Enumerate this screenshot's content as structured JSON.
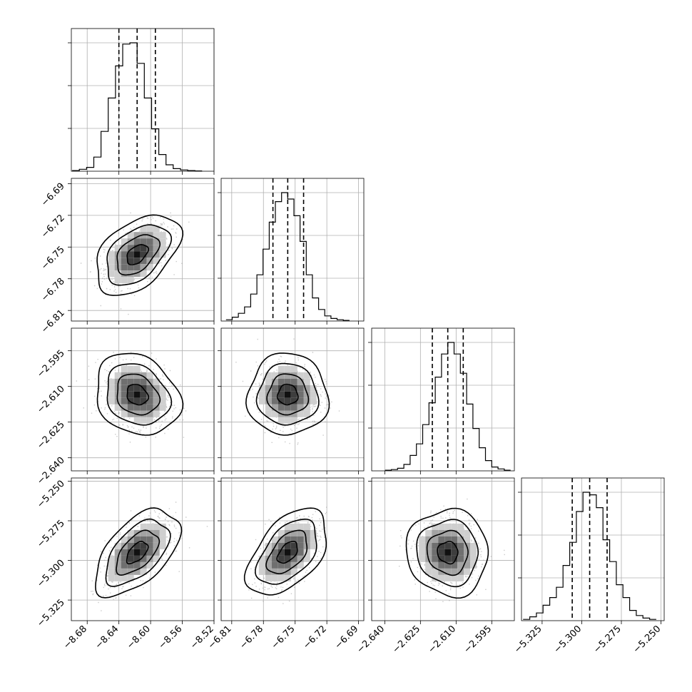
{
  "chart_data": {
    "type": "corner",
    "grid": true,
    "params": [
      {
        "range": [
          -8.7,
          -8.52
        ],
        "ticks": [
          -8.68,
          -8.64,
          -8.6,
          -8.56,
          -8.52
        ],
        "tick_labels": [
          "−8.68",
          "−8.64",
          "−8.60",
          "−8.56",
          "−8.52"
        ],
        "mean": -8.617,
        "sd": 0.0205,
        "quantiles": [
          -8.64,
          -8.617,
          -8.594
        ],
        "hist": [
          0.5,
          1.5,
          3,
          11,
          31,
          57,
          82,
          99,
          100,
          84,
          57,
          33,
          13,
          5,
          2,
          1,
          0.5,
          0.2
        ]
      },
      {
        "range": [
          -6.82,
          -6.685
        ],
        "ticks": [
          -6.81,
          -6.78,
          -6.75,
          -6.72,
          -6.69
        ],
        "tick_labels": [
          "−6.81",
          "−6.78",
          "−6.75",
          "−6.72",
          "−6.69"
        ],
        "mean": -6.757,
        "sd": 0.0146,
        "quantiles": [
          -6.771,
          -6.757,
          -6.742
        ],
        "hist": [
          1,
          3,
          6,
          11,
          21,
          36,
          56,
          77,
          93,
          100,
          95,
          82,
          62,
          36,
          18,
          9,
          4,
          2,
          1,
          0.5
        ]
      },
      {
        "range": [
          -2.6455,
          -2.5855
        ],
        "ticks": [
          -2.64,
          -2.625,
          -2.61,
          -2.595
        ],
        "tick_labels": [
          "−2.640",
          "−2.625",
          "−2.610",
          "−2.595"
        ],
        "mean": -2.6135,
        "sd": 0.0066,
        "quantiles": [
          -2.62,
          -2.6135,
          -2.607
        ],
        "hist": [
          0.5,
          1,
          2,
          5,
          12,
          21,
          36,
          53,
          73,
          91,
          100,
          91,
          76,
          52,
          33,
          18,
          8,
          3,
          1.5,
          0.5
        ]
      },
      {
        "range": [
          -5.338,
          -5.248
        ],
        "ticks": [
          -5.325,
          -5.3,
          -5.275,
          -5.25
        ],
        "tick_labels": [
          "−5.325",
          "−5.300",
          "−5.275",
          "−5.250"
        ],
        "mean": -5.295,
        "sd": 0.0105,
        "quantiles": [
          -5.306,
          -5.295,
          -5.284
        ],
        "hist": [
          1,
          3,
          6,
          12,
          18,
          26,
          43,
          61,
          85,
          100,
          98,
          88,
          63,
          46,
          28,
          18,
          8,
          4,
          2,
          1
        ]
      }
    ],
    "correlations": {
      "0-1": 0.45,
      "0-2": -0.2,
      "0-3": 0.55,
      "1-2": 0.0,
      "1-3": 0.5,
      "2-3": -0.05
    },
    "quantile_levels": [
      0.16,
      0.5,
      0.84
    ],
    "contour_sigma_levels": [
      0.5,
      1.0,
      1.5,
      2.0
    ],
    "colors": {
      "hist": "#000000",
      "points": "#9e9e9e",
      "grid": "#b0b0b0"
    }
  }
}
